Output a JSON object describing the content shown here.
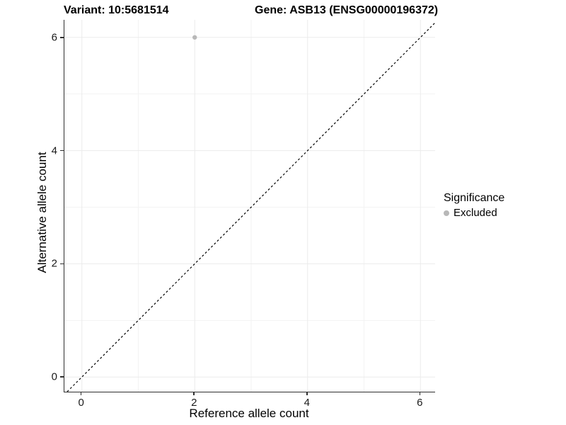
{
  "titles": {
    "variant": "Variant: 10:5681514",
    "gene": "Gene: ASB13 (ENSG00000196372)"
  },
  "axes": {
    "x_label": "Reference allele count",
    "y_label": "Alternative allele count"
  },
  "legend": {
    "title": "Significance",
    "items": [
      {
        "label": "Excluded",
        "color": "#b8b8b8"
      }
    ]
  },
  "colors": {
    "background": "#ffffff",
    "axis_line": "#2f2f2f",
    "major_grid": "#ebebeb",
    "minor_grid": "#f3f3f3",
    "reference_line": "#000000",
    "point": "#b8b8b8",
    "tick_text": "#1a1a1a"
  },
  "chart_data": {
    "type": "scatter",
    "title": "Variant: 10:5681514   Gene: ASB13 (ENSG00000196372)",
    "xlabel": "Reference allele count",
    "ylabel": "Alternative allele count",
    "xlim": [
      -0.31,
      6.26
    ],
    "ylim": [
      -0.26,
      6.31
    ],
    "x_ticks": [
      0,
      2,
      4,
      6
    ],
    "y_ticks": [
      0,
      2,
      4,
      6
    ],
    "x_minor_ticks": [
      1,
      3,
      5
    ],
    "y_minor_ticks": [
      1,
      3,
      5
    ],
    "grid": true,
    "legend_position": "right",
    "series": [
      {
        "name": "Excluded",
        "color": "#b8b8b8",
        "points": [
          {
            "x": 2,
            "y": 6
          }
        ]
      }
    ],
    "reference_line": {
      "type": "identity",
      "style": "dashed",
      "from": -0.26,
      "to": 6.26
    }
  }
}
